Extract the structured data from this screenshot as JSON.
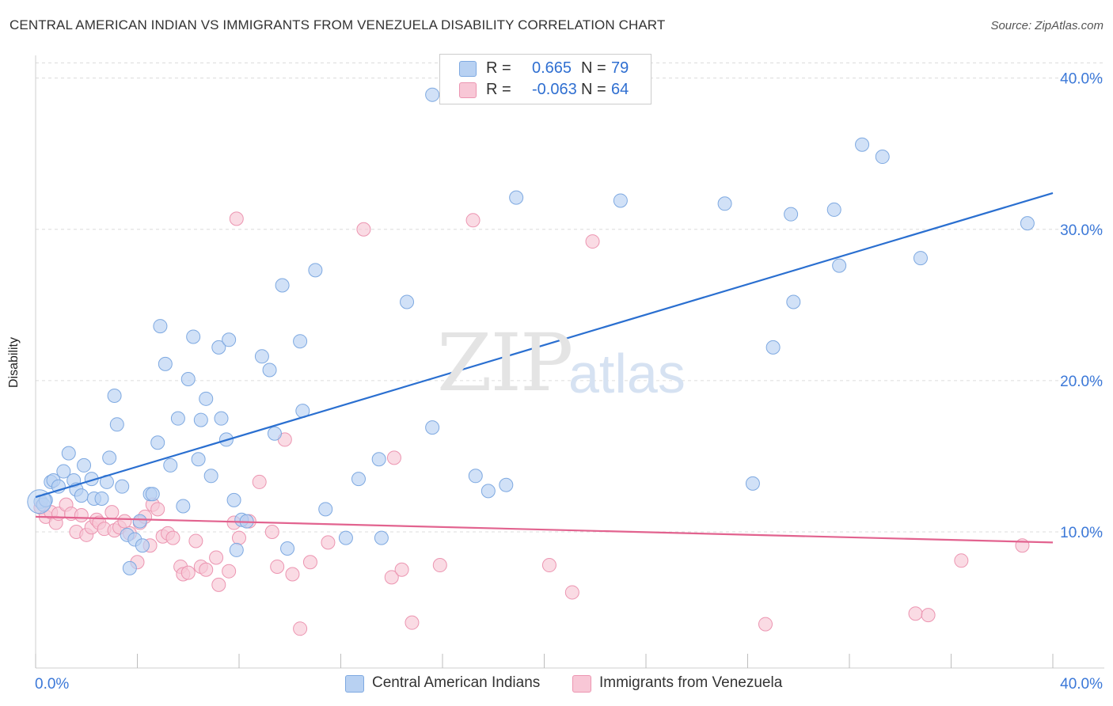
{
  "header": {
    "title": "CENTRAL AMERICAN INDIAN VS IMMIGRANTS FROM VENEZUELA DISABILITY CORRELATION CHART",
    "source": "Source: ZipAtlas.com"
  },
  "watermark": {
    "zip": "ZIP",
    "atlas": "atlas"
  },
  "legend": {
    "rows": [
      {
        "r_label": "R =",
        "r_value": "0.665",
        "n_label": "N =",
        "n_value": "79",
        "color": "#a9c8f0"
      },
      {
        "r_label": "R =",
        "r_value": "-0.063",
        "n_label": "N =",
        "n_value": "64",
        "color": "#f6b9cb"
      }
    ]
  },
  "colors": {
    "blue_fill": "#b8d1f2",
    "blue_stroke": "#7ea9e1",
    "blue_line": "#2a6fd0",
    "pink_fill": "#f8c7d6",
    "pink_stroke": "#ec95b1",
    "pink_line": "#e2638f",
    "axis_text": "#3b78d8",
    "grid": "#dcdcdc"
  },
  "chart_data": {
    "type": "scatter",
    "title": "CENTRAL AMERICAN INDIAN VS IMMIGRANTS FROM VENEZUELA DISABILITY CORRELATION CHART",
    "xlabel": "",
    "ylabel": "Disability",
    "xlim": [
      0,
      40
    ],
    "ylim": [
      1.0,
      41.5
    ],
    "x_tick_labels": [
      "0.0%",
      "40.0%"
    ],
    "y_ticks": [
      10,
      20,
      30,
      40
    ],
    "y_tick_labels": [
      "10.0%",
      "20.0%",
      "30.0%",
      "40.0%"
    ],
    "grid": true,
    "legend_position": "top-center",
    "series": [
      {
        "name": "Central American Indians",
        "trend": {
          "x": [
            0,
            40
          ],
          "y": [
            12.3,
            32.4
          ]
        },
        "points": [
          [
            0.2,
            12.0
          ],
          [
            0.3,
            11.8
          ],
          [
            0.4,
            12.1
          ],
          [
            0.6,
            13.3
          ],
          [
            0.7,
            13.4
          ],
          [
            0.9,
            13.0
          ],
          [
            1.1,
            14.0
          ],
          [
            1.3,
            15.2
          ],
          [
            1.5,
            13.4
          ],
          [
            1.6,
            12.8
          ],
          [
            1.8,
            12.4
          ],
          [
            1.9,
            14.4
          ],
          [
            2.2,
            13.5
          ],
          [
            2.3,
            12.2
          ],
          [
            2.6,
            12.2
          ],
          [
            2.8,
            13.3
          ],
          [
            2.9,
            14.9
          ],
          [
            3.1,
            19.0
          ],
          [
            3.2,
            17.1
          ],
          [
            3.4,
            13.0
          ],
          [
            3.6,
            9.8
          ],
          [
            3.7,
            7.6
          ],
          [
            3.9,
            9.5
          ],
          [
            4.1,
            10.7
          ],
          [
            4.2,
            9.1
          ],
          [
            4.5,
            12.5
          ],
          [
            4.6,
            12.5
          ],
          [
            4.8,
            15.9
          ],
          [
            4.9,
            23.6
          ],
          [
            5.1,
            21.1
          ],
          [
            5.3,
            14.4
          ],
          [
            5.6,
            17.5
          ],
          [
            5.8,
            11.7
          ],
          [
            6.0,
            20.1
          ],
          [
            6.2,
            22.9
          ],
          [
            6.4,
            14.8
          ],
          [
            6.5,
            17.4
          ],
          [
            6.7,
            18.8
          ],
          [
            6.9,
            13.7
          ],
          [
            7.2,
            22.2
          ],
          [
            7.3,
            17.5
          ],
          [
            7.5,
            16.1
          ],
          [
            7.6,
            22.7
          ],
          [
            7.8,
            12.1
          ],
          [
            7.9,
            8.8
          ],
          [
            8.1,
            10.8
          ],
          [
            8.3,
            10.7
          ],
          [
            8.9,
            21.6
          ],
          [
            9.2,
            20.7
          ],
          [
            9.4,
            16.5
          ],
          [
            9.7,
            26.3
          ],
          [
            9.9,
            8.9
          ],
          [
            10.4,
            22.6
          ],
          [
            10.5,
            18.0
          ],
          [
            11.0,
            27.3
          ],
          [
            11.4,
            11.5
          ],
          [
            12.2,
            9.6
          ],
          [
            12.7,
            13.5
          ],
          [
            13.5,
            14.8
          ],
          [
            13.6,
            9.6
          ],
          [
            14.6,
            25.2
          ],
          [
            15.6,
            16.9
          ],
          [
            15.6,
            38.9
          ],
          [
            17.3,
            13.7
          ],
          [
            17.8,
            12.7
          ],
          [
            18.5,
            13.1
          ],
          [
            18.9,
            32.1
          ],
          [
            23.0,
            31.9
          ],
          [
            27.1,
            31.7
          ],
          [
            28.2,
            13.2
          ],
          [
            29.0,
            22.2
          ],
          [
            29.7,
            31.0
          ],
          [
            29.8,
            25.2
          ],
          [
            31.6,
            27.6
          ],
          [
            32.5,
            35.6
          ],
          [
            33.3,
            34.8
          ],
          [
            34.8,
            28.1
          ],
          [
            39.0,
            30.4
          ],
          [
            31.4,
            31.3
          ]
        ]
      },
      {
        "name": "Immigrants from Venezuela",
        "trend": {
          "x": [
            0,
            40
          ],
          "y": [
            11.0,
            9.3
          ]
        },
        "points": [
          [
            0.2,
            11.6
          ],
          [
            0.4,
            11.0
          ],
          [
            0.6,
            11.3
          ],
          [
            0.8,
            10.6
          ],
          [
            0.9,
            11.2
          ],
          [
            1.2,
            11.8
          ],
          [
            1.4,
            11.2
          ],
          [
            1.6,
            10.0
          ],
          [
            1.8,
            11.1
          ],
          [
            2.0,
            9.8
          ],
          [
            2.2,
            10.3
          ],
          [
            2.4,
            10.8
          ],
          [
            2.5,
            10.6
          ],
          [
            2.7,
            10.2
          ],
          [
            3.0,
            11.3
          ],
          [
            3.1,
            10.1
          ],
          [
            3.3,
            10.3
          ],
          [
            3.5,
            10.7
          ],
          [
            3.7,
            9.9
          ],
          [
            4.0,
            8.0
          ],
          [
            4.1,
            10.6
          ],
          [
            4.3,
            11.0
          ],
          [
            4.5,
            9.1
          ],
          [
            4.6,
            11.8
          ],
          [
            4.8,
            11.5
          ],
          [
            5.0,
            9.7
          ],
          [
            5.2,
            9.9
          ],
          [
            5.4,
            9.6
          ],
          [
            5.7,
            7.7
          ],
          [
            5.8,
            7.2
          ],
          [
            6.0,
            7.3
          ],
          [
            6.3,
            9.4
          ],
          [
            6.5,
            7.7
          ],
          [
            6.7,
            7.5
          ],
          [
            7.1,
            8.3
          ],
          [
            7.2,
            6.5
          ],
          [
            7.6,
            7.4
          ],
          [
            7.8,
            10.6
          ],
          [
            7.9,
            30.7
          ],
          [
            8.0,
            9.6
          ],
          [
            8.4,
            10.7
          ],
          [
            8.8,
            13.3
          ],
          [
            9.3,
            10.0
          ],
          [
            9.5,
            7.7
          ],
          [
            9.8,
            16.1
          ],
          [
            10.1,
            7.2
          ],
          [
            10.4,
            3.6
          ],
          [
            10.8,
            8.0
          ],
          [
            11.5,
            9.3
          ],
          [
            12.9,
            30.0
          ],
          [
            14.0,
            7.0
          ],
          [
            14.1,
            14.9
          ],
          [
            14.4,
            7.5
          ],
          [
            14.8,
            4.0
          ],
          [
            15.9,
            7.8
          ],
          [
            17.2,
            30.6
          ],
          [
            20.2,
            7.8
          ],
          [
            21.1,
            6.0
          ],
          [
            21.9,
            29.2
          ],
          [
            28.7,
            3.9
          ],
          [
            34.6,
            4.6
          ],
          [
            35.1,
            4.5
          ],
          [
            36.4,
            8.1
          ],
          [
            38.8,
            9.1
          ]
        ]
      }
    ]
  },
  "bottom_legend": [
    {
      "label": "Central American Indians",
      "color": "#b8d1f2"
    },
    {
      "label": "Immigrants from Venezuela",
      "color": "#f8c7d6"
    }
  ]
}
